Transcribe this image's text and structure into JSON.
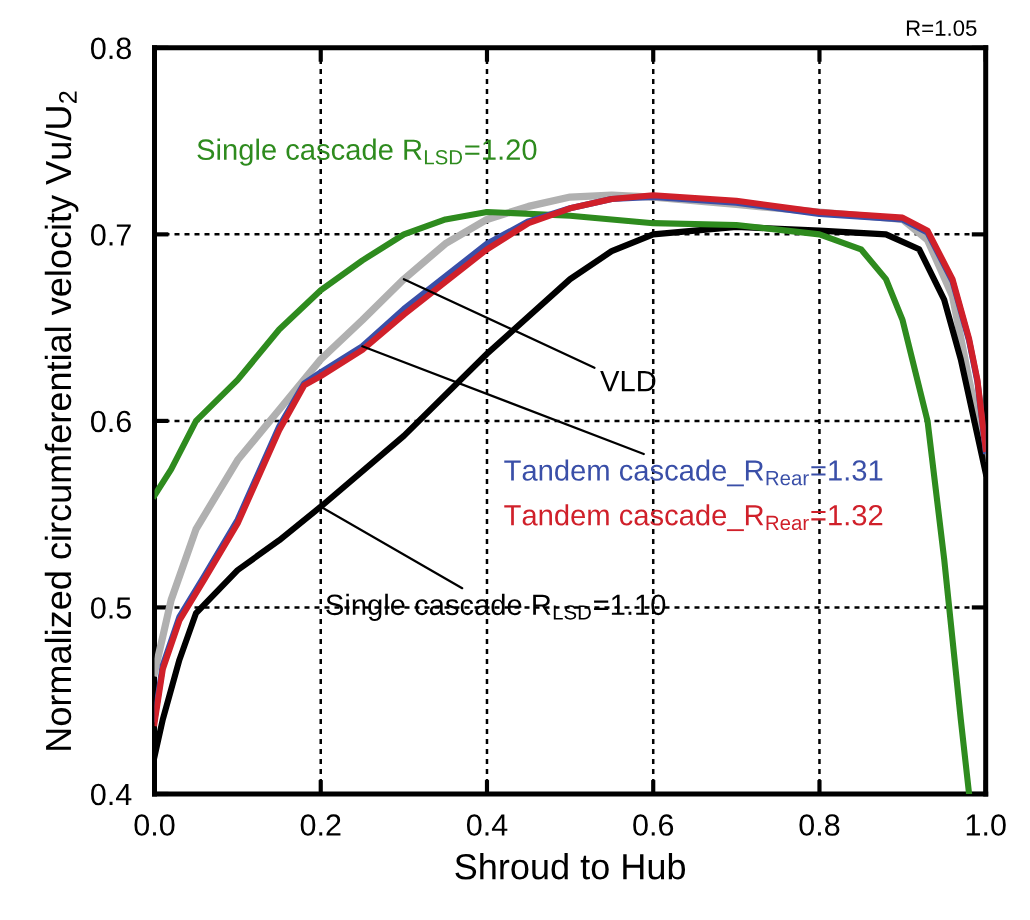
{
  "chart_data": {
    "type": "line",
    "xlabel": "Shroud to Hub",
    "ylabel": "Normalized circumferential velocity Vu/U$_{2}$",
    "annotations": [
      "R=1.05",
      {
        "text": "VLD",
        "x": 0.3,
        "y": 0.676
      }
    ],
    "xlim": [
      0,
      1
    ],
    "ylim": [
      0.4,
      0.8
    ],
    "xticks": [
      {
        "value": 0,
        "label": "0.0"
      },
      {
        "value": 0.2,
        "label": "0.2"
      },
      {
        "value": 0.4,
        "label": "0.4"
      },
      {
        "value": 0.6,
        "label": "0.6"
      },
      {
        "value": 0.8,
        "label": "0.8"
      },
      {
        "value": 1,
        "label": "1.0"
      }
    ],
    "yticks": [
      0.4,
      0.5,
      0.6,
      0.7,
      0.8
    ],
    "grid": true,
    "line_style": "solid",
    "marker": "none",
    "series": [
      {
        "name": "Single cascade R$_{LSD}$=1.20",
        "color": "#2e8b1e",
        "x": [
          0,
          0.02,
          0.05,
          0.1,
          0.15,
          0.2,
          0.25,
          0.3,
          0.35,
          0.4,
          0.5,
          0.6,
          0.7,
          0.8,
          0.85,
          0.88,
          0.9,
          0.93,
          0.95,
          0.97,
          0.98
        ],
        "values": [
          0.56,
          0.574,
          0.6,
          0.622,
          0.649,
          0.67,
          0.686,
          0.7,
          0.708,
          0.712,
          0.71,
          0.706,
          0.705,
          0.7,
          0.692,
          0.676,
          0.654,
          0.6,
          0.526,
          0.44,
          0.4
        ]
      },
      {
        "name": "Single cascade R$_{LSD}$=1.10",
        "color": "#000000",
        "x": [
          0,
          0.01,
          0.03,
          0.05,
          0.1,
          0.15,
          0.2,
          0.3,
          0.4,
          0.5,
          0.55,
          0.6,
          0.7,
          0.8,
          0.88,
          0.92,
          0.95,
          0.97,
          1.0
        ],
        "values": [
          0.42,
          0.44,
          0.472,
          0.497,
          0.52,
          0.536,
          0.554,
          0.592,
          0.636,
          0.676,
          0.691,
          0.7,
          0.704,
          0.702,
          0.7,
          0.692,
          0.665,
          0.633,
          0.572
        ]
      },
      {
        "color": "#b0b0b0",
        "x": [
          0,
          0.02,
          0.05,
          0.1,
          0.15,
          0.2,
          0.25,
          0.3,
          0.35,
          0.4,
          0.45,
          0.5,
          0.55,
          0.6,
          0.7,
          0.8,
          0.9,
          0.93,
          0.96,
          0.98,
          1.0
        ],
        "values": [
          0.465,
          0.504,
          0.542,
          0.579,
          0.606,
          0.633,
          0.654,
          0.676,
          0.695,
          0.708,
          0.715,
          0.72,
          0.721,
          0.72,
          0.716,
          0.712,
          0.708,
          0.697,
          0.667,
          0.622,
          0.58
        ]
      },
      {
        "name": "Tandem cascade_R$_{Rear}$=1.31",
        "color": "#3a4fa8",
        "x": [
          0,
          0.01,
          0.03,
          0.06,
          0.1,
          0.15,
          0.18,
          0.2,
          0.25,
          0.3,
          0.4,
          0.45,
          0.5,
          0.55,
          0.6,
          0.7,
          0.8,
          0.9,
          0.93,
          0.96,
          0.98,
          0.99,
          1.0
        ],
        "values": [
          0.44,
          0.469,
          0.495,
          0.517,
          0.547,
          0.597,
          0.62,
          0.626,
          0.64,
          0.66,
          0.695,
          0.707,
          0.714,
          0.719,
          0.72,
          0.717,
          0.711,
          0.708,
          0.701,
          0.675,
          0.643,
          0.621,
          0.584
        ]
      },
      {
        "name": "Tandem cascade_R$_{Rear}$=1.32",
        "color": "#d0202a",
        "x": [
          0,
          0.01,
          0.03,
          0.06,
          0.1,
          0.15,
          0.18,
          0.2,
          0.25,
          0.3,
          0.4,
          0.45,
          0.5,
          0.55,
          0.6,
          0.7,
          0.8,
          0.9,
          0.93,
          0.96,
          0.98,
          0.99,
          1.0
        ],
        "values": [
          0.438,
          0.467,
          0.493,
          0.515,
          0.545,
          0.595,
          0.619,
          0.624,
          0.638,
          0.657,
          0.692,
          0.706,
          0.714,
          0.719,
          0.721,
          0.718,
          0.712,
          0.709,
          0.702,
          0.676,
          0.644,
          0.622,
          0.585
        ]
      }
    ]
  }
}
